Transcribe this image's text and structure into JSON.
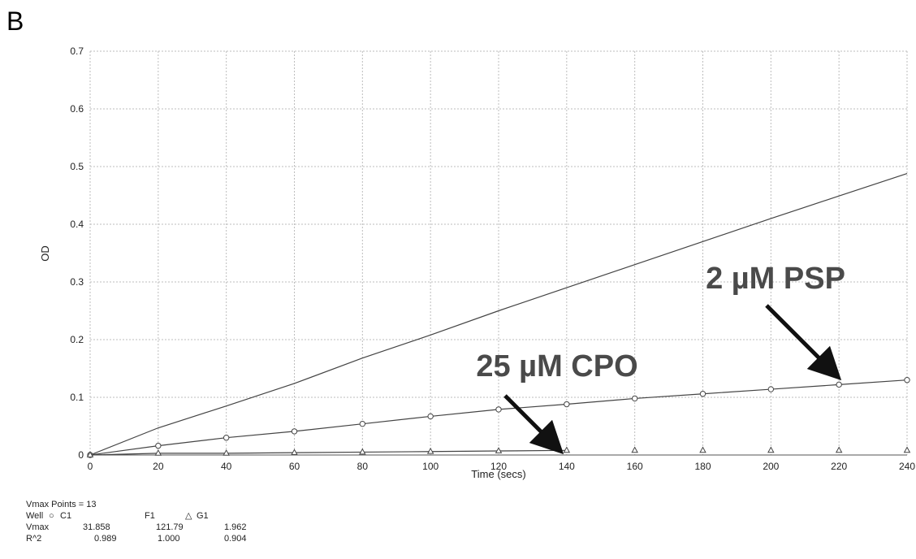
{
  "panel_label": "B",
  "chart_data": {
    "type": "line",
    "xlabel": "Time (secs)",
    "ylabel": "OD",
    "xlim": [
      0,
      240
    ],
    "ylim": [
      0,
      0.7
    ],
    "x_ticks": [
      0,
      20,
      40,
      60,
      80,
      100,
      120,
      140,
      160,
      180,
      200,
      220,
      240
    ],
    "y_ticks": [
      0,
      0.1,
      0.2,
      0.3,
      0.4,
      0.5,
      0.6,
      0.7
    ],
    "y_tick_labels": [
      "0",
      "0.1",
      "0.2",
      "0.3",
      "0.4",
      "0.5",
      "0.6",
      "0.7"
    ],
    "grid": true,
    "series": [
      {
        "name": "F1",
        "marker": "none",
        "x": [
          0,
          20,
          40,
          60,
          80,
          100,
          120,
          140,
          160,
          180,
          200,
          220,
          240
        ],
        "y": [
          0,
          0.047,
          0.085,
          0.124,
          0.168,
          0.208,
          0.25,
          0.29,
          0.33,
          0.37,
          0.41,
          0.449,
          0.488
        ]
      },
      {
        "name": "C1",
        "marker": "circle",
        "x": [
          0,
          20,
          40,
          60,
          80,
          100,
          120,
          140,
          160,
          180,
          200,
          220,
          240
        ],
        "y": [
          0,
          0.016,
          0.03,
          0.041,
          0.054,
          0.067,
          0.079,
          0.088,
          0.098,
          0.106,
          0.114,
          0.122,
          0.13
        ]
      },
      {
        "name": "G1",
        "marker": "triangle",
        "x": [
          0,
          20,
          40,
          60,
          80,
          100,
          120,
          140,
          160,
          180,
          200,
          220,
          240
        ],
        "y": [
          0,
          0.003,
          0.003,
          0.004,
          0.005,
          0.006,
          0.007,
          0.008,
          0.008,
          0.008,
          0.008,
          0.008,
          0.008
        ],
        "line_until_x": 140
      }
    ],
    "annotations": [
      {
        "text": "2 µM PSP",
        "arrow_to": {
          "x": 220,
          "y": 0.122
        }
      },
      {
        "text": "25 µM CPO",
        "arrow_to": {
          "x": 138,
          "y": 0.012
        }
      }
    ]
  },
  "stats": {
    "vmax_points": "Vmax Points = 13",
    "well_label": "Well",
    "wells": [
      "C1",
      "F1",
      "G1"
    ],
    "well_symbols": [
      "circle-icon",
      "none",
      "triangle-icon"
    ],
    "vmax_label": "Vmax",
    "vmax_values": [
      "31.858",
      "121.79",
      "1.962"
    ],
    "r2_label": "R^2",
    "r2_values": [
      "0.989",
      "1.000",
      "0.904"
    ]
  }
}
